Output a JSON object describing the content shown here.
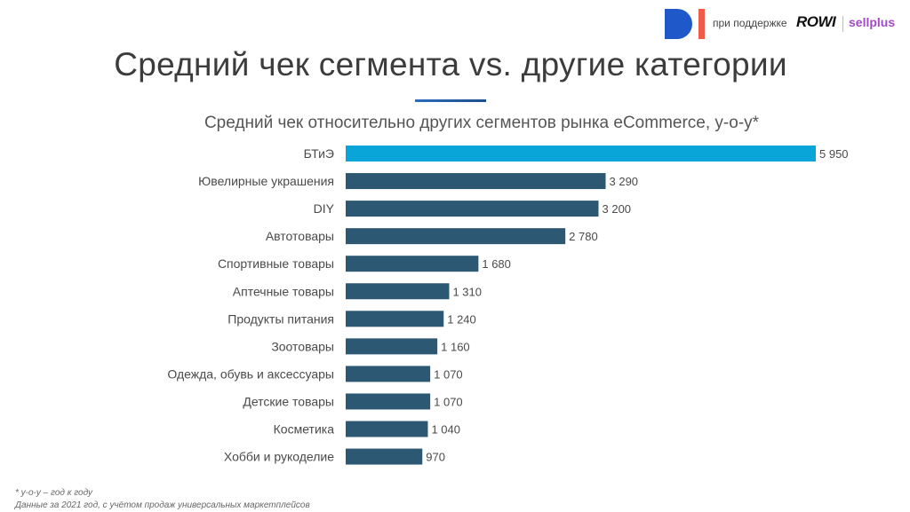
{
  "header": {
    "partner_text": "при поддержке",
    "rowi": "ROWI",
    "sellplus": "sellplus"
  },
  "page_title": "Средний чек сегмента vs. другие категории",
  "colors": {
    "highlight": "#0aa5d8",
    "bar": "#2c5873",
    "logo_blue": "#1f59c9",
    "logo_red": "#ef5a49",
    "sellplus": "#a349c8"
  },
  "chart_data": {
    "type": "bar",
    "orientation": "horizontal",
    "title": "Средний чек относительно других сегментов рынка eCommerce, y-o-y*",
    "categories": [
      "БТиЭ",
      "Ювелирные украшения",
      "DIY",
      "Автотовары",
      "Спортивные товары",
      "Аптечные товары",
      "Продукты питания",
      "Зоотовары",
      "Одежда, обувь и аксессуары",
      "Детские товары",
      "Косметика",
      "Хобби и рукоделие"
    ],
    "values": [
      5950,
      3290,
      3200,
      2780,
      1680,
      1310,
      1240,
      1160,
      1070,
      1070,
      1040,
      970
    ],
    "labels": [
      "5 950",
      "3 290",
      "3 200",
      "2 780",
      "1 680",
      "1 310",
      "1 240",
      "1 160",
      "1 070",
      "1 070",
      "1 040",
      "970"
    ],
    "highlight_index": 0,
    "xlim": [
      0,
      5950
    ],
    "grid": false
  },
  "footnotes": {
    "line1": "* y-o-y – год к году",
    "line2": "Данные за 2021 год, с учётом продаж универсальных маркетплейсов"
  }
}
